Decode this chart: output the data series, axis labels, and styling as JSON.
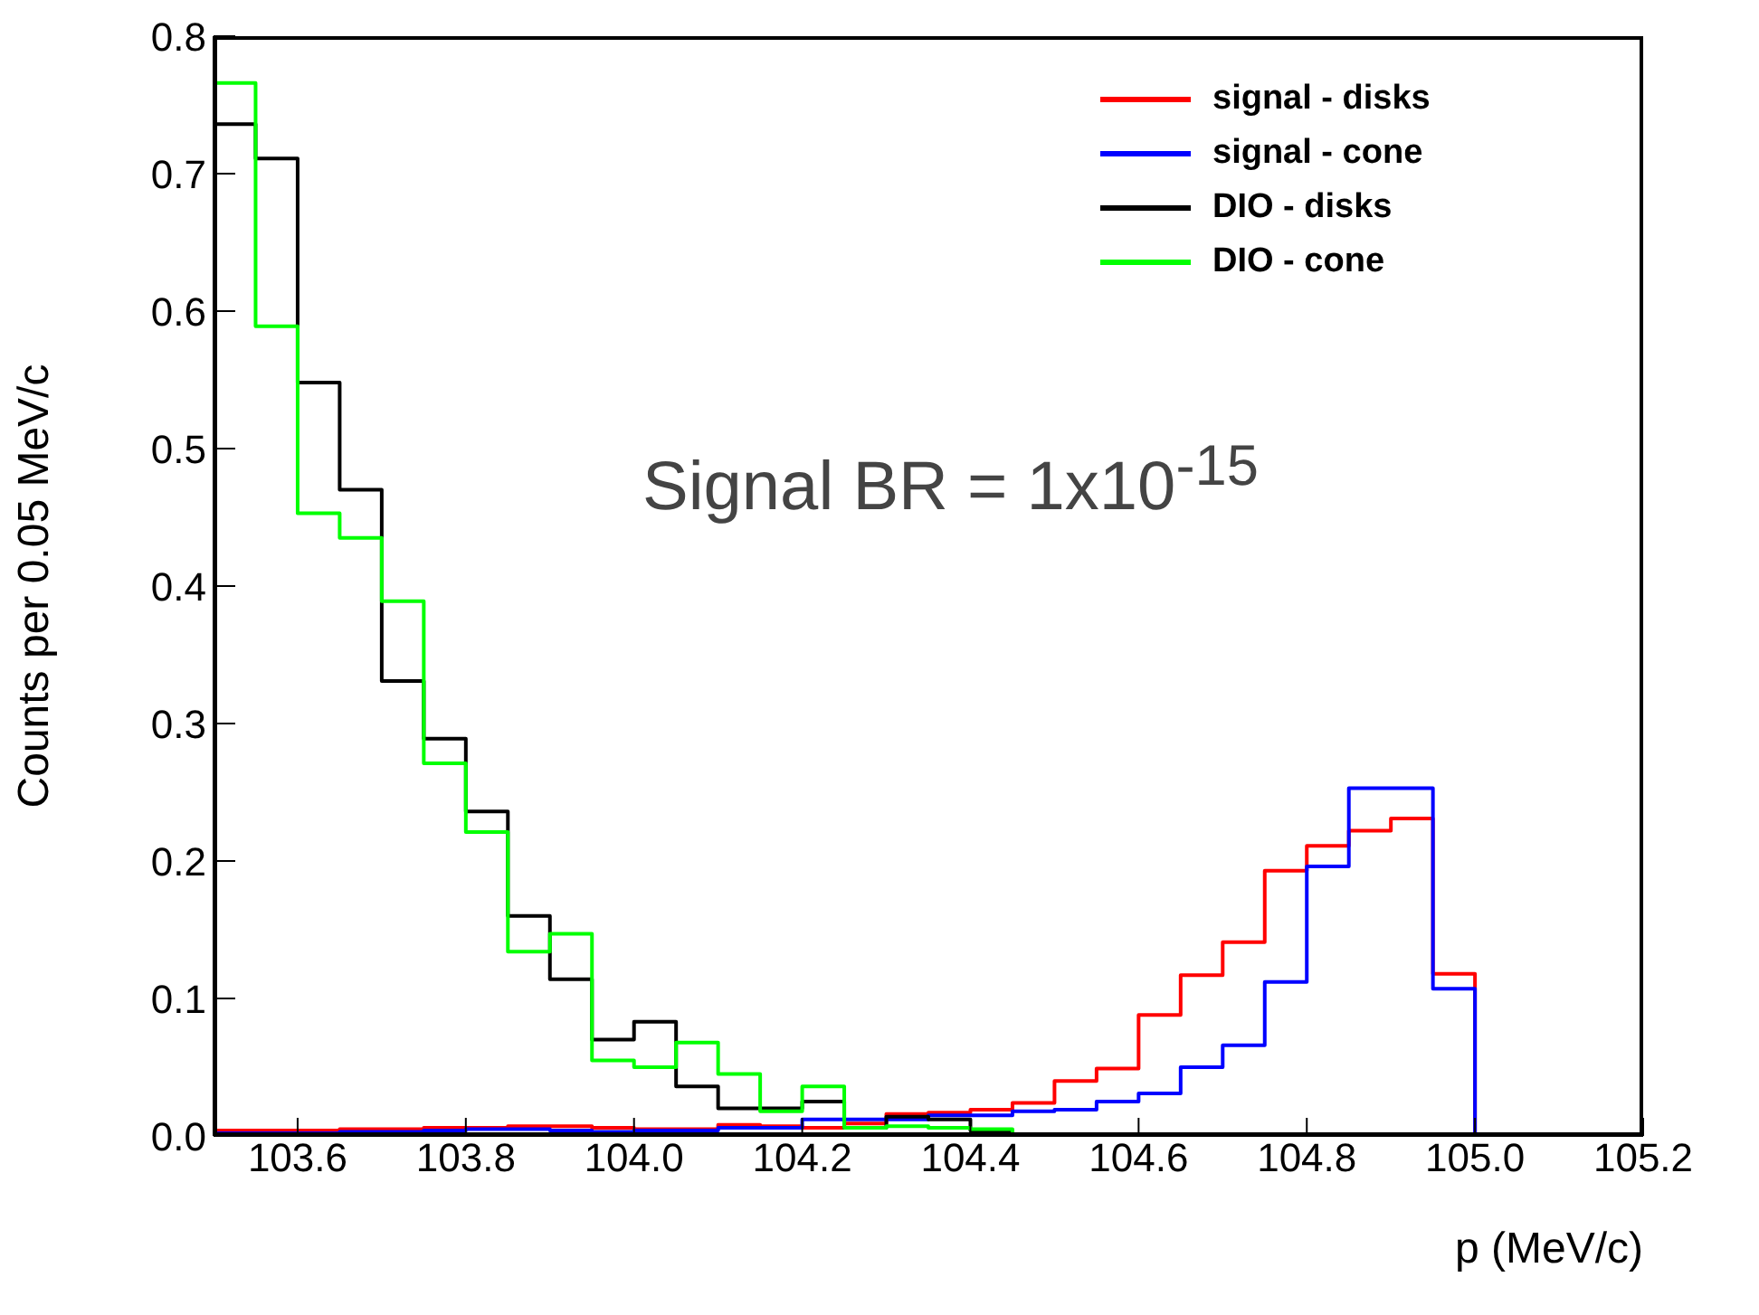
{
  "chart_data": {
    "type": "histogram",
    "xlabel": "p (MeV/c)",
    "ylabel": "Counts per 0.05 MeV/c",
    "annotations": [
      "Signal BR = 1x10$^{-15}$"
    ],
    "bins": [
      103.5,
      103.55,
      103.6,
      103.65,
      103.7,
      103.75,
      103.8,
      103.85,
      103.9,
      103.95,
      104.0,
      104.05,
      104.1,
      104.15,
      104.2,
      104.25,
      104.3,
      104.35,
      104.4,
      104.45,
      104.5,
      104.55,
      104.6,
      104.65,
      104.7,
      104.75,
      104.8,
      104.85,
      104.9,
      104.95,
      105.0,
      105.05,
      105.1,
      105.15,
      105.2
    ],
    "series": [
      {
        "name": "signal - disks",
        "color": "#ff0000",
        "values": [
          0.004,
          0.004,
          0.004,
          0.005,
          0.005,
          0.006,
          0.006,
          0.007,
          0.007,
          0.006,
          0.005,
          0.005,
          0.008,
          0.007,
          0.006,
          0.009,
          0.016,
          0.017,
          0.019,
          0.024,
          0.04,
          0.049,
          0.088,
          0.117,
          0.141,
          0.193,
          0.211,
          0.222,
          0.231,
          0.118,
          0,
          0,
          0,
          0
        ]
      },
      {
        "name": "signal - cone",
        "color": "#0000ff",
        "values": [
          0.002,
          0.002,
          0.002,
          0.003,
          0.003,
          0.004,
          0.005,
          0.005,
          0.004,
          0.003,
          0.004,
          0.004,
          0.006,
          0.006,
          0.012,
          0.012,
          0.012,
          0.015,
          0.015,
          0.018,
          0.019,
          0.025,
          0.031,
          0.05,
          0.066,
          0.112,
          0.196,
          0.253,
          0.253,
          0.107,
          0,
          0,
          0,
          0
        ]
      },
      {
        "name": "DIO - disks",
        "color": "#000000",
        "values": [
          0.736,
          0.711,
          0.548,
          0.47,
          0.331,
          0.289,
          0.236,
          0.16,
          0.114,
          0.07,
          0.083,
          0.036,
          0.02,
          0.02,
          0.025,
          0.006,
          0.014,
          0.012,
          0.004,
          0,
          0,
          0,
          0,
          0,
          0,
          0,
          0,
          0,
          0,
          0,
          0,
          0,
          0,
          0
        ]
      },
      {
        "name": "DIO - cone",
        "color": "#00ff00",
        "values": [
          0.766,
          0.589,
          0.453,
          0.435,
          0.389,
          0.271,
          0.221,
          0.134,
          0.147,
          0.055,
          0.05,
          0.068,
          0.045,
          0.018,
          0.036,
          0.006,
          0.007,
          0.006,
          0.005,
          0.001,
          0,
          0,
          0,
          0,
          0,
          0,
          0,
          0,
          0,
          0,
          0,
          0,
          0,
          0
        ]
      }
    ],
    "xlim": [
      103.5,
      105.2
    ],
    "xticks": [
      103.6,
      103.8,
      {
        "value": 104.0,
        "label": "104.0"
      },
      104.2,
      104.4,
      104.6,
      104.8,
      {
        "value": 105.0,
        "label": "105.0"
      },
      105.2
    ],
    "ylim": [
      0,
      0.8
    ],
    "yticks": [
      {
        "value": 0,
        "label": "0.0"
      },
      0.1,
      0.2,
      0.3,
      0.4,
      0.5,
      0.6,
      0.7,
      0.8
    ],
    "legend": "top right",
    "marker": "none",
    "line_style": "solid"
  }
}
